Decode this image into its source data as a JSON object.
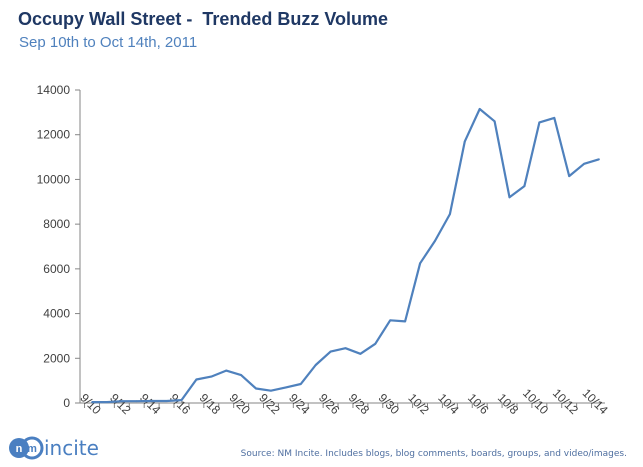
{
  "chart_data": {
    "type": "line",
    "title": "Occupy Wall Street -  Trended Buzz Volume",
    "subtitle": "Sep 10th to Oct 14th, 2011",
    "xlabel": "",
    "ylabel": "",
    "ylim": [
      0,
      14000
    ],
    "yticks": [
      0,
      2000,
      4000,
      6000,
      8000,
      10000,
      12000,
      14000
    ],
    "xtick_labels": [
      "9/10",
      "9/12",
      "9/14",
      "9/16",
      "9/18",
      "9/20",
      "9/22",
      "9/24",
      "9/26",
      "9/28",
      "9/30",
      "10/2",
      "10/4",
      "10/6",
      "10/8",
      "10/10",
      "10/12",
      "10/14"
    ],
    "x": [
      "9/10",
      "9/11",
      "9/12",
      "9/13",
      "9/14",
      "9/15",
      "9/16",
      "9/17",
      "9/18",
      "9/19",
      "9/20",
      "9/21",
      "9/22",
      "9/23",
      "9/24",
      "9/25",
      "9/26",
      "9/27",
      "9/28",
      "9/29",
      "9/30",
      "10/1",
      "10/2",
      "10/3",
      "10/4",
      "10/5",
      "10/6",
      "10/7",
      "10/8",
      "10/9",
      "10/10",
      "10/11",
      "10/12",
      "10/13",
      "10/14"
    ],
    "series": [
      {
        "name": "Buzz Volume",
        "color": "#4f81bd",
        "values": [
          40,
          40,
          80,
          80,
          90,
          90,
          130,
          1050,
          1180,
          1450,
          1250,
          650,
          550,
          700,
          850,
          1700,
          2300,
          2450,
          2200,
          2650,
          3700,
          3650,
          6250,
          7250,
          8450,
          11700,
          13150,
          12600,
          9200,
          9700,
          12550,
          12750,
          10150,
          10700,
          10900
        ]
      }
    ],
    "grid": false,
    "legend": "none"
  },
  "logo": {
    "mark": "nm",
    "text": "incite",
    "color": "#4a7fc1"
  },
  "source": "Source: NM Incite. Includes blogs, blog comments, boards, groups, and video/images."
}
